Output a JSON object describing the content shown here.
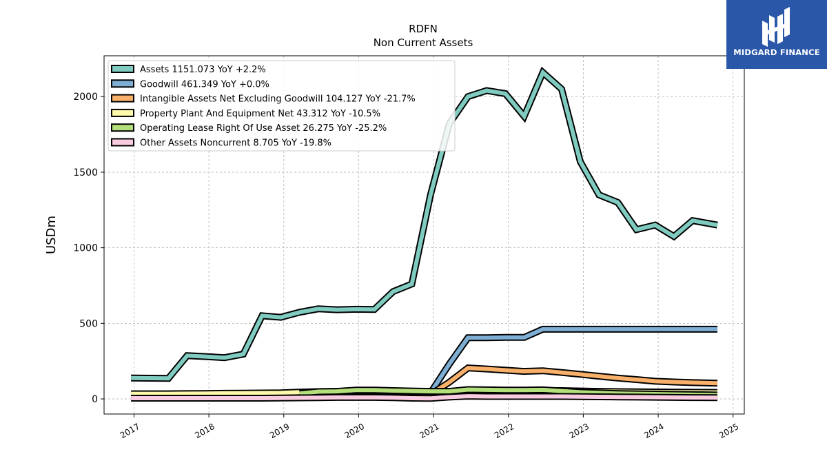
{
  "logo": {
    "text": "MIDGARD FINANCE",
    "background": "#2a57a8"
  },
  "chart_data": {
    "type": "line",
    "title": "RDFN",
    "subtitle": "Non Current  Assets",
    "xlabel": "",
    "ylabel": "USDm",
    "xlim": [
      2016.6,
      2025.15
    ],
    "ylim": [
      -100,
      2270
    ],
    "x_ticks": [
      2017,
      2018,
      2019,
      2020,
      2021,
      2022,
      2023,
      2024,
      2025
    ],
    "y_ticks": [
      0,
      500,
      1000,
      1500,
      2000
    ],
    "grid": true,
    "legend_position": "top-left",
    "x": [
      2016.96,
      2017.21,
      2017.46,
      2017.71,
      2017.96,
      2018.21,
      2018.46,
      2018.71,
      2018.96,
      2019.21,
      2019.46,
      2019.71,
      2019.96,
      2020.21,
      2020.46,
      2020.71,
      2020.96,
      2021.21,
      2021.46,
      2021.71,
      2021.96,
      2022.21,
      2022.46,
      2022.71,
      2022.96,
      2023.21,
      2023.46,
      2023.71,
      2023.96,
      2024.21,
      2024.46,
      2024.79
    ],
    "series": [
      {
        "name": "Assets  1151.073 YoY +2.2%",
        "color": "#80cbc0",
        "values": [
          138,
          137,
          136,
          286,
          280,
          273,
          296,
          550,
          540,
          573,
          596,
          590,
          593,
          592,
          710,
          760,
          1350,
          1820,
          2000,
          2040,
          2020,
          1870,
          2160,
          2050,
          1570,
          1350,
          1300,
          1120,
          1150,
          1075,
          1180,
          1150
        ]
      },
      {
        "name": "Goodwill  461.349 YoY +0.0%",
        "color": "#7eaed3",
        "values": [
          null,
          null,
          null,
          null,
          null,
          null,
          null,
          null,
          null,
          null,
          null,
          null,
          null,
          null,
          null,
          null,
          40,
          230,
          405,
          405,
          407,
          407,
          461,
          461,
          461,
          461,
          461,
          461,
          461,
          461,
          461,
          461
        ]
      },
      {
        "name": "Intangible Assets Net Excluding Goodwill  104.127 YoY -21.7%",
        "color": "#f8b06b",
        "values": [
          null,
          null,
          null,
          null,
          null,
          null,
          null,
          null,
          null,
          null,
          null,
          null,
          null,
          null,
          null,
          null,
          30,
          110,
          205,
          198,
          190,
          182,
          186,
          175,
          163,
          150,
          138,
          128,
          117,
          112,
          108,
          104
        ]
      },
      {
        "name": "Property Plant And Equipment Net  43.312 YoY -10.5%",
        "color": "#fffaab",
        "values": [
          34,
          34,
          34,
          35,
          36,
          37,
          38,
          39,
          40,
          45,
          48,
          50,
          52,
          52,
          51,
          50,
          50,
          50,
          50,
          50,
          50,
          52,
          55,
          55,
          52,
          50,
          48,
          47,
          46,
          45,
          44,
          43
        ]
      },
      {
        "name": "Operating Lease Right Of Use Asset  26.275 YoY -25.2%",
        "color": "#b4e07c",
        "values": [
          null,
          null,
          null,
          null,
          null,
          null,
          null,
          null,
          null,
          36,
          48,
          50,
          58,
          58,
          55,
          52,
          50,
          50,
          62,
          60,
          58,
          58,
          60,
          52,
          44,
          40,
          36,
          34,
          32,
          30,
          28,
          26
        ]
      },
      {
        "name": "Other Assets Noncurrent  8.705 YoY -19.8%",
        "color": "#f9cbe0",
        "values": [
          5,
          5,
          5,
          5,
          5,
          5,
          5,
          5,
          6,
          7,
          8,
          10,
          10,
          10,
          8,
          5,
          4,
          12,
          18,
          16,
          16,
          16,
          16,
          16,
          15,
          14,
          13,
          12,
          11,
          10,
          9,
          8.7
        ]
      }
    ]
  }
}
